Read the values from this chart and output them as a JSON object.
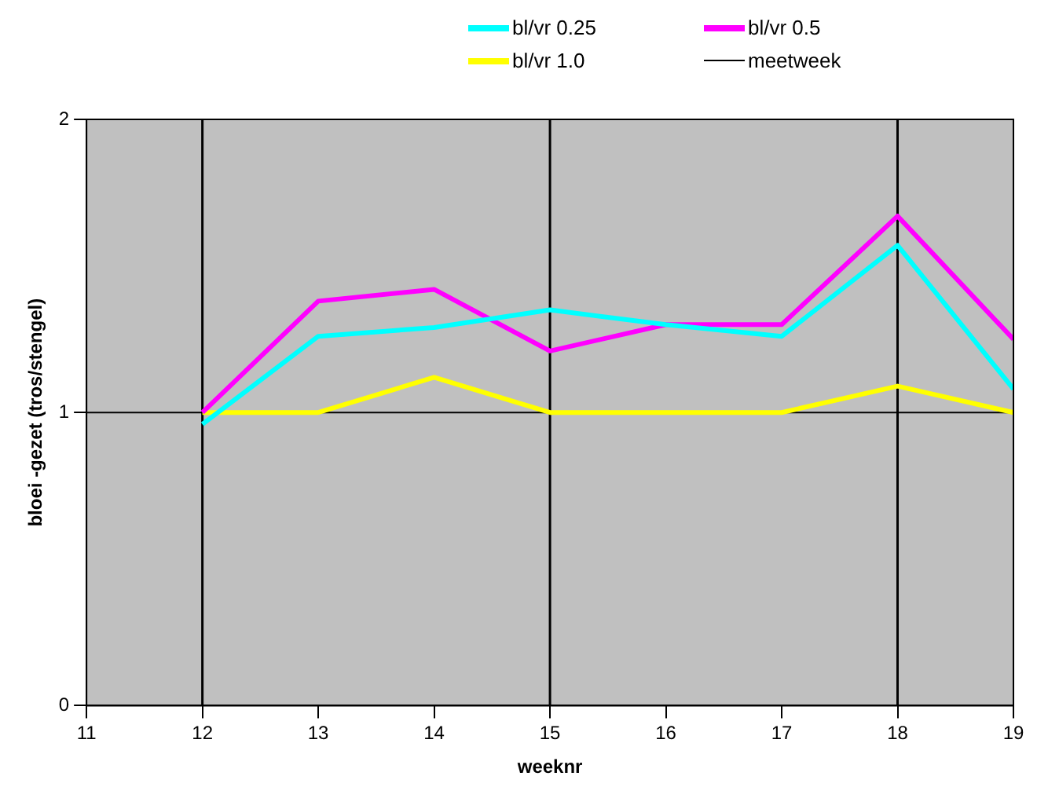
{
  "chart_data": {
    "type": "line",
    "xlabel": "weeknr",
    "ylabel": "bloei -gezet (tros/stengel)",
    "x": [
      12,
      13,
      14,
      15,
      16,
      17,
      18,
      19
    ],
    "series": [
      {
        "name": "bl/vr 0.25",
        "color": "#00ffff",
        "values": [
          0.96,
          1.26,
          1.29,
          1.35,
          1.3,
          1.26,
          1.57,
          1.08
        ]
      },
      {
        "name": "bl/vr 0.5",
        "color": "#ff00ff",
        "values": [
          1.0,
          1.38,
          1.42,
          1.21,
          1.3,
          1.3,
          1.67,
          1.25
        ]
      },
      {
        "name": "bl/vr 1.0",
        "color": "#ffff00",
        "values": [
          1.0,
          1.0,
          1.12,
          1.0,
          1.0,
          1.0,
          1.09,
          1.0
        ]
      }
    ],
    "ref_lines": [
      {
        "axis": "x",
        "value": 12,
        "label": "meetweek",
        "color": "#000000"
      },
      {
        "axis": "x",
        "value": 15,
        "color": "#000000"
      },
      {
        "axis": "x",
        "value": 18,
        "color": "#000000"
      },
      {
        "axis": "y",
        "value": 1,
        "color": "#000000"
      }
    ],
    "xlim": [
      11,
      19
    ],
    "xticks": [
      11,
      12,
      13,
      14,
      15,
      16,
      17,
      18,
      19
    ],
    "ylim": [
      0,
      2
    ],
    "yticks": [
      0,
      1,
      2
    ],
    "legend": "top",
    "marker": "none",
    "line_style": "solid"
  }
}
